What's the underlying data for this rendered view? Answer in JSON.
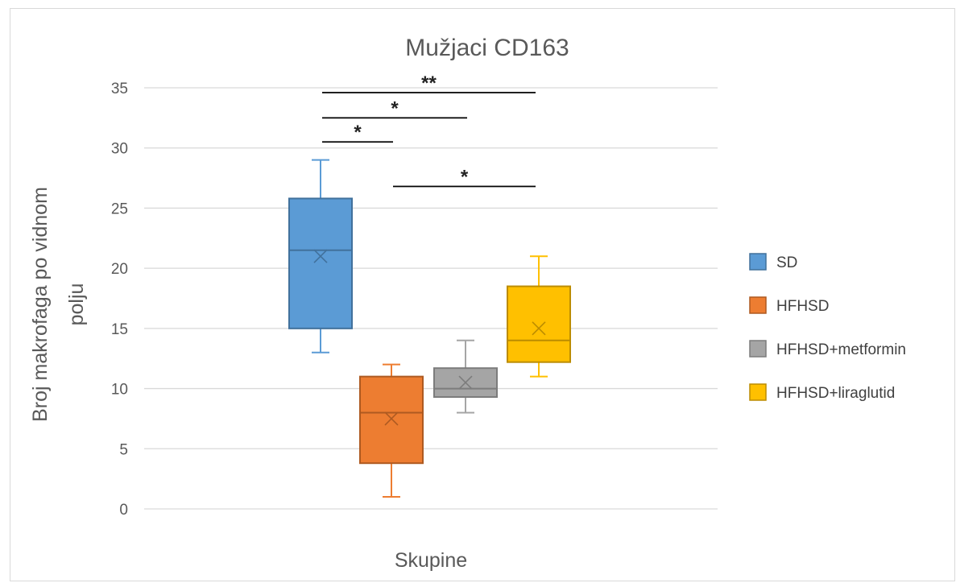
{
  "chart_data": {
    "type": "box",
    "title": "Mužjaci CD163",
    "xlabel": "Skupine",
    "ylabel_line1": "Broj makrofaga po vidnom",
    "ylabel_line2": "polju",
    "ylim": [
      0,
      35
    ],
    "yticks": [
      "0",
      "5",
      "10",
      "15",
      "20",
      "25",
      "30",
      "35"
    ],
    "grid": true,
    "legend_position": "right",
    "series": [
      {
        "name": "SD",
        "color": "#5b9bd5",
        "edge": "#41719c",
        "min": 13,
        "q1": 15,
        "median": 21.5,
        "mean": 21,
        "q3": 25.8,
        "max": 29
      },
      {
        "name": "HFHSD",
        "color": "#ed7d31",
        "edge": "#ae5a21",
        "min": 1,
        "q1": 3.8,
        "median": 8,
        "mean": 7.5,
        "q3": 11,
        "max": 12
      },
      {
        "name": "HFHSD+metformin",
        "color": "#a5a5a5",
        "edge": "#7c7c7c",
        "min": 8,
        "q1": 9.3,
        "median": 10,
        "mean": 10.5,
        "q3": 11.7,
        "max": 14
      },
      {
        "name": "HFHSD+liraglutid",
        "color": "#ffc000",
        "edge": "#bc8c00",
        "min": 11,
        "q1": 12.2,
        "median": 14,
        "mean": 15,
        "q3": 18.5,
        "max": 21
      }
    ],
    "significance": [
      {
        "from": 0,
        "to": 1,
        "y": 30.5,
        "label": "*"
      },
      {
        "from": 0,
        "to": 2,
        "y": 32.5,
        "label": "*"
      },
      {
        "from": 0,
        "to": 3,
        "y": 34.6,
        "label": "**"
      },
      {
        "from": 1,
        "to": 3,
        "y": 26.8,
        "label": "*"
      }
    ]
  }
}
